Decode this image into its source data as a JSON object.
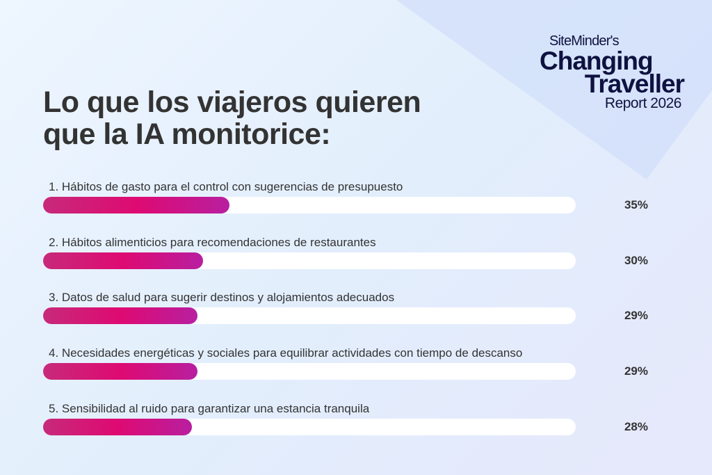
{
  "title_line1": "Lo que los viajeros quieren",
  "title_line2": "que la IA monitorice:",
  "logo": {
    "brand": "SiteMinder's",
    "line1": "Changing",
    "line2": "Traveller",
    "line3": "Report 2026"
  },
  "colors": {
    "bar_fill": "#de0a72",
    "track": "#ffffff",
    "text": "#333333",
    "logo": "#0f1240"
  },
  "chart_data": {
    "type": "bar",
    "orientation": "horizontal",
    "xlim": [
      0,
      100
    ],
    "categories": [
      "1. Hábitos de gasto para el control con sugerencias de presupuesto",
      "2. Hábitos alimenticios para recomendaciones de restaurantes",
      "3. Datos de salud para sugerir destinos y alojamientos adecuados",
      "4. Necesidades energéticas y sociales para equilibrar actividades con tiempo de descanso",
      "5. Sensibilidad al ruido para garantizar una estancia tranquila"
    ],
    "values": [
      35,
      30,
      29,
      29,
      28
    ],
    "labels": [
      "35%",
      "30%",
      "29%",
      "29%",
      "28%"
    ]
  }
}
